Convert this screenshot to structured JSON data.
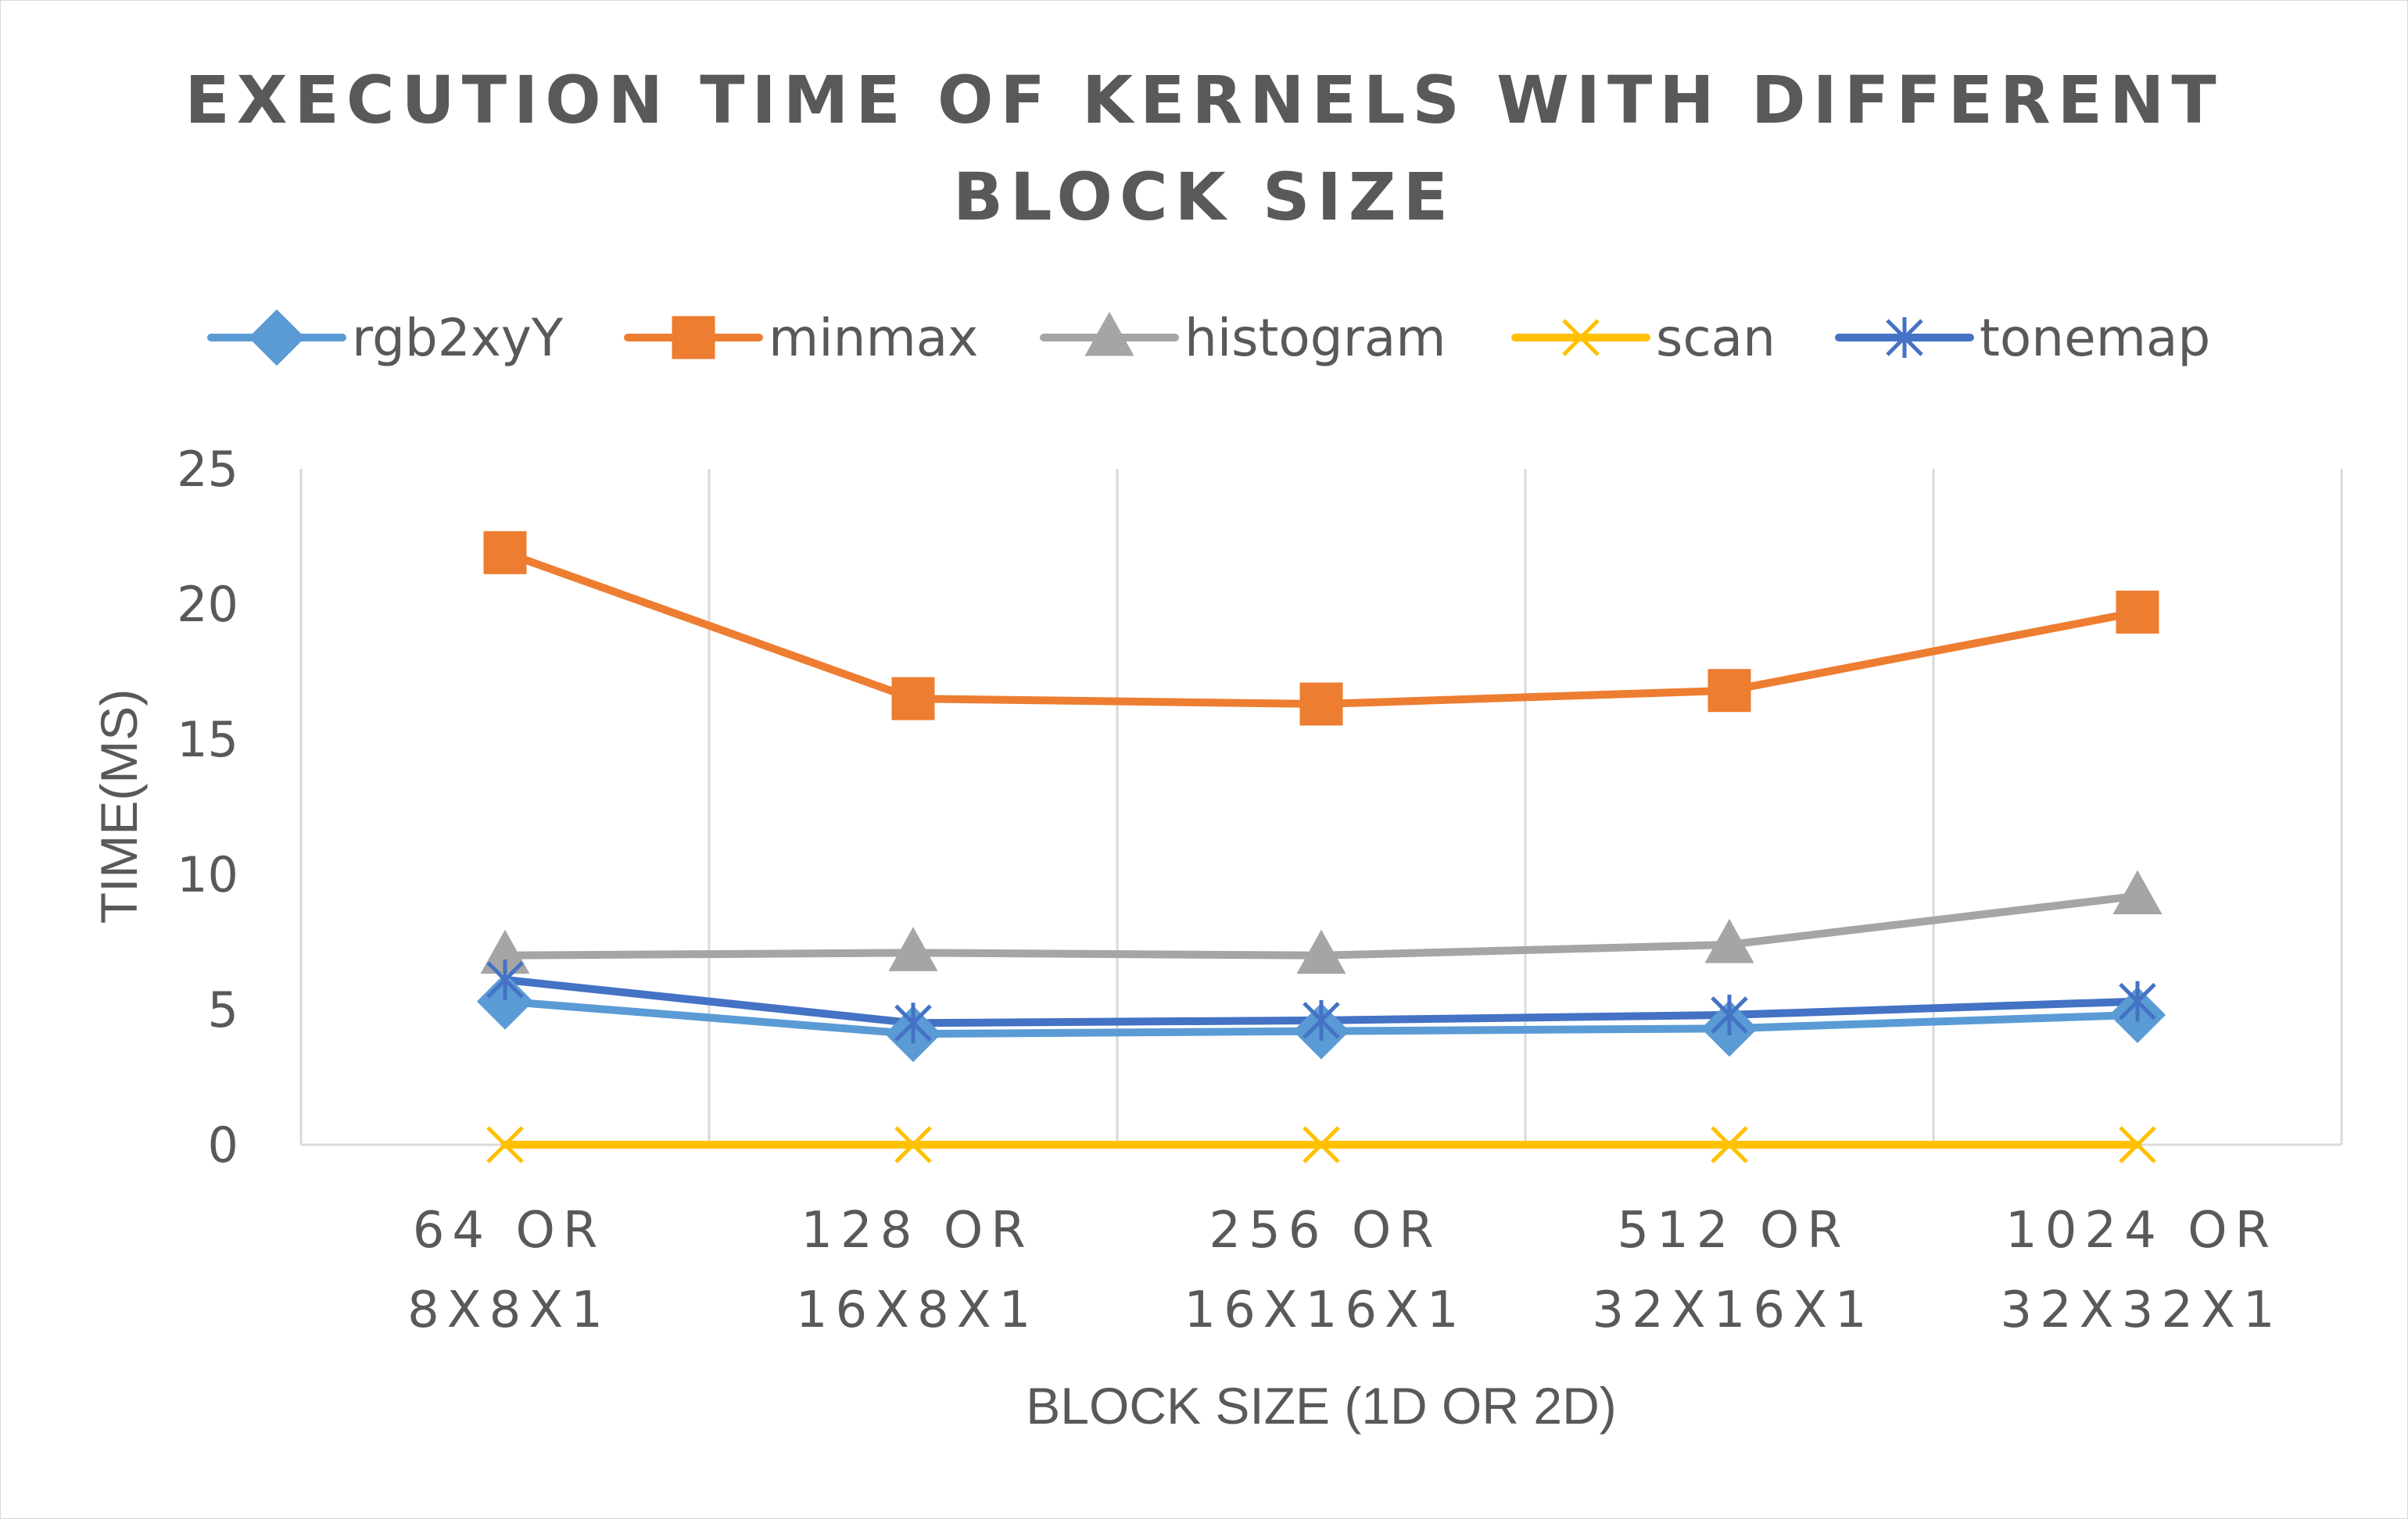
{
  "chart_data": {
    "type": "line",
    "title_lines": [
      "EXECUTION TIME OF KERNELS WITH DIFFERENT",
      "BLOCK SIZE"
    ],
    "xlabel": "BLOCK SIZE (1D OR 2D)",
    "ylabel": "TIME(MS)",
    "categories": [
      [
        "64 OR",
        "8X8X1"
      ],
      [
        "128 OR",
        "16X8X1"
      ],
      [
        "256 OR",
        "16X16X1"
      ],
      [
        "512 OR",
        "32X16X1"
      ],
      [
        "1024 OR",
        "32X32X1"
      ]
    ],
    "ylim": [
      0,
      25
    ],
    "yticks": [
      0,
      5,
      10,
      15,
      20,
      25
    ],
    "grid": "vertical",
    "legend_position": "top",
    "series": [
      {
        "name": "rgb2xyY",
        "color": "#5b9bd5",
        "marker": "diamond",
        "values": [
          5.3,
          4.1,
          4.2,
          4.3,
          4.8
        ]
      },
      {
        "name": "minmax",
        "color": "#ed7d31",
        "marker": "square",
        "values": [
          21.9,
          16.5,
          16.3,
          16.8,
          19.7
        ]
      },
      {
        "name": "histogram",
        "color": "#a5a5a5",
        "marker": "triangle",
        "values": [
          7.0,
          7.1,
          7.0,
          7.4,
          9.2
        ]
      },
      {
        "name": "scan",
        "color": "#ffc000",
        "marker": "x",
        "values": [
          0.0,
          0.0,
          0.0,
          0.0,
          0.0
        ]
      },
      {
        "name": "tonemap",
        "color": "#4472c4",
        "marker": "star",
        "values": [
          6.1,
          4.5,
          4.6,
          4.8,
          5.3
        ]
      }
    ]
  }
}
